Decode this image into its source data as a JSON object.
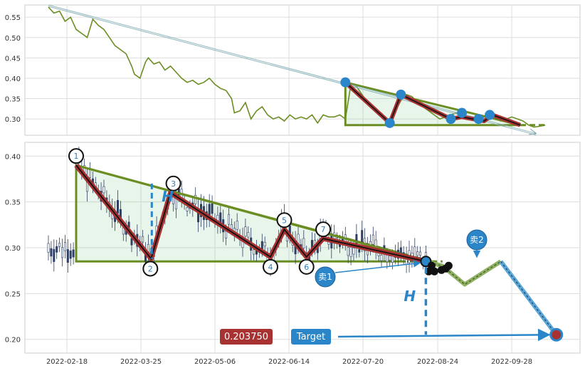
{
  "chart_data": {
    "type": "line",
    "x_ticks": [
      "2022-02-18",
      "2022-03-25",
      "2022-05-06",
      "2022-06-14",
      "2022-07-20",
      "2022-08-24",
      "2022-09-28"
    ],
    "top_panel": {
      "y_ticks": [
        "0.55",
        "0.50",
        "0.45",
        "0.40",
        "0.35",
        "0.30"
      ],
      "ylim": [
        0.26,
        0.58
      ],
      "line_color": "#6b8e23",
      "series": [
        [
          0,
          0.575
        ],
        [
          2,
          0.56
        ],
        [
          4,
          0.565
        ],
        [
          6,
          0.54
        ],
        [
          8,
          0.55
        ],
        [
          10,
          0.52
        ],
        [
          12,
          0.51
        ],
        [
          14,
          0.5
        ],
        [
          16,
          0.545
        ],
        [
          18,
          0.53
        ],
        [
          20,
          0.52
        ],
        [
          22,
          0.5
        ],
        [
          24,
          0.48
        ],
        [
          26,
          0.47
        ],
        [
          28,
          0.46
        ],
        [
          30,
          0.43
        ],
        [
          31,
          0.41
        ],
        [
          33,
          0.4
        ],
        [
          35,
          0.44
        ],
        [
          36,
          0.45
        ],
        [
          38,
          0.435
        ],
        [
          40,
          0.44
        ],
        [
          42,
          0.42
        ],
        [
          44,
          0.43
        ],
        [
          46,
          0.415
        ],
        [
          48,
          0.4
        ],
        [
          50,
          0.39
        ],
        [
          52,
          0.395
        ],
        [
          54,
          0.385
        ],
        [
          56,
          0.39
        ],
        [
          58,
          0.4
        ],
        [
          60,
          0.385
        ],
        [
          62,
          0.375
        ],
        [
          64,
          0.37
        ],
        [
          66,
          0.35
        ],
        [
          67,
          0.315
        ],
        [
          69,
          0.32
        ],
        [
          71,
          0.34
        ],
        [
          73,
          0.3
        ],
        [
          75,
          0.32
        ],
        [
          77,
          0.33
        ],
        [
          79,
          0.31
        ],
        [
          81,
          0.3
        ],
        [
          83,
          0.305
        ],
        [
          85,
          0.295
        ],
        [
          87,
          0.31
        ],
        [
          89,
          0.3
        ],
        [
          91,
          0.305
        ],
        [
          93,
          0.3
        ],
        [
          95,
          0.31
        ],
        [
          97,
          0.29
        ],
        [
          99,
          0.31
        ],
        [
          101,
          0.305
        ],
        [
          103,
          0.305
        ],
        [
          105,
          0.31
        ],
        [
          107,
          0.3
        ],
        [
          109,
          0.385
        ],
        [
          111,
          0.38
        ],
        [
          113,
          0.36
        ],
        [
          115,
          0.34
        ],
        [
          117,
          0.33
        ],
        [
          119,
          0.31
        ],
        [
          121,
          0.3
        ],
        [
          123,
          0.29
        ],
        [
          125,
          0.32
        ],
        [
          127,
          0.345
        ],
        [
          129,
          0.36
        ],
        [
          131,
          0.355
        ],
        [
          133,
          0.34
        ],
        [
          135,
          0.33
        ],
        [
          137,
          0.32
        ],
        [
          139,
          0.31
        ],
        [
          141,
          0.3
        ],
        [
          143,
          0.305
        ],
        [
          145,
          0.31
        ],
        [
          147,
          0.315
        ],
        [
          149,
          0.31
        ],
        [
          151,
          0.305
        ],
        [
          153,
          0.3
        ],
        [
          155,
          0.295
        ],
        [
          157,
          0.305
        ],
        [
          159,
          0.31
        ],
        [
          161,
          0.3
        ],
        [
          163,
          0.295
        ],
        [
          165,
          0.3
        ],
        [
          167,
          0.305
        ],
        [
          169,
          0.3
        ],
        [
          171,
          0.295
        ],
        [
          173,
          0.285
        ],
        [
          175,
          0.28
        ],
        [
          177,
          0.282
        ],
        [
          179,
          0.285
        ]
      ],
      "main_trend": [
        [
          0,
          0.58
        ],
        [
          171,
          0.275
        ]
      ],
      "triangle": {
        "apex": [
          107,
          0.39
        ],
        "base_left": [
          107,
          0.285
        ],
        "base_right": [
          170,
          0.285
        ]
      },
      "zigzag": [
        [
          107,
          0.39
        ],
        [
          123,
          0.29
        ],
        [
          127,
          0.36
        ],
        [
          145,
          0.3
        ],
        [
          149,
          0.305
        ],
        [
          157,
          0.295
        ],
        [
          160,
          0.31
        ],
        [
          170,
          0.285
        ]
      ],
      "pivots": [
        [
          107,
          0.39
        ],
        [
          123,
          0.29
        ],
        [
          127,
          0.36
        ],
        [
          145,
          0.3
        ],
        [
          149,
          0.315
        ],
        [
          155,
          0.3
        ],
        [
          159,
          0.31
        ]
      ]
    },
    "bottom_panel": {
      "y_ticks": [
        "0.40",
        "0.35",
        "0.30",
        "0.25",
        "0.20"
      ],
      "ylim": [
        0.185,
        0.415
      ],
      "candle_color": "#2e3f63",
      "triangle": {
        "apex": [
          10,
          0.39
        ],
        "base_left": [
          10,
          0.285
        ],
        "base_right": [
          138,
          0.285
        ]
      },
      "upper_trend": [
        [
          10,
          0.39
        ],
        [
          137,
          0.285
        ]
      ],
      "zigzag": [
        [
          10,
          0.39
        ],
        [
          37,
          0.288
        ],
        [
          44,
          0.36
        ],
        [
          80,
          0.29
        ],
        [
          85,
          0.32
        ],
        [
          93,
          0.29
        ],
        [
          99,
          0.31
        ],
        [
          136,
          0.285
        ]
      ],
      "pivots": [
        {
          "label": "1",
          "x": 10,
          "y": 0.39
        },
        {
          "label": "2",
          "x": 37,
          "y": 0.288
        },
        {
          "label": "3",
          "x": 44,
          "y": 0.36
        },
        {
          "label": "4",
          "x": 80,
          "y": 0.29
        },
        {
          "label": "5",
          "x": 85,
          "y": 0.32
        },
        {
          "label": "6",
          "x": 93,
          "y": 0.29
        },
        {
          "label": "7",
          "x": 99,
          "y": 0.31
        }
      ],
      "breakout_point": [
        136,
        0.285
      ],
      "projection": [
        [
          136,
          0.285
        ],
        [
          142,
          0.28
        ],
        [
          150,
          0.26
        ],
        [
          163,
          0.285
        ],
        [
          183,
          0.205
        ]
      ],
      "target_point": [
        183,
        0.205
      ],
      "target_value": "0.203750",
      "target_label": "Target",
      "sell1_label": "卖1",
      "sell2_label": "卖2",
      "height_label": "H"
    }
  }
}
